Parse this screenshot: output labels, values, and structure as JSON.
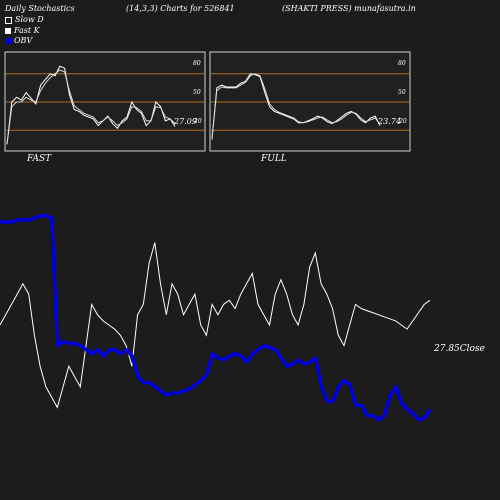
{
  "header": {
    "left": "Daily Stochastics",
    "center": "(14,3,3) Charts for 526841",
    "right": "(SHAKTI PRESS) munafasutra.in"
  },
  "legend": [
    {
      "label": "Slow  D",
      "color": "#ffffff",
      "icon": "square-outline"
    },
    {
      "label": "Fast K",
      "color": "#ffffff",
      "icon": "square-filled"
    },
    {
      "label": "OBV",
      "color": "#0000dd",
      "icon": "square-filled"
    }
  ],
  "colors": {
    "background": "#1c1c1c",
    "panel": "#202020",
    "orange_line": "#b06a1a",
    "obv": "#0000dd",
    "price": "#ffffff"
  },
  "chart_data": [
    {
      "type": "line",
      "title": "FAST",
      "ylim": [
        0,
        100
      ],
      "ref_lines": [
        20,
        50,
        80
      ],
      "y_tick_labels": [
        "80",
        "50",
        "20"
      ],
      "last_value_label": "27.09",
      "series": [
        {
          "values": [
            5,
            50,
            55,
            52,
            60,
            54,
            48,
            68,
            74,
            80,
            78,
            88,
            86,
            58,
            42,
            40,
            36,
            34,
            32,
            25,
            30,
            35,
            27,
            22,
            30,
            34,
            50,
            42,
            38,
            25,
            30,
            50,
            45,
            30,
            32,
            24
          ]
        },
        {
          "values": [
            5,
            45,
            50,
            50,
            55,
            52,
            50,
            62,
            70,
            76,
            80,
            84,
            82,
            62,
            46,
            42,
            38,
            36,
            34,
            28,
            30,
            34,
            30,
            25,
            28,
            32,
            45,
            44,
            40,
            30,
            30,
            45,
            44,
            34,
            32,
            27
          ]
        }
      ]
    },
    {
      "type": "line",
      "title": "FULL",
      "ylim": [
        0,
        100
      ],
      "ref_lines": [
        20,
        50,
        80
      ],
      "y_tick_labels": [
        "80",
        "50",
        "20"
      ],
      "last_value_label": "23.74",
      "series": [
        {
          "values": [
            10,
            65,
            68,
            66,
            66,
            66,
            70,
            72,
            80,
            79,
            77,
            60,
            45,
            40,
            38,
            36,
            34,
            32,
            28,
            28,
            30,
            32,
            35,
            33,
            29,
            27,
            30,
            34,
            38,
            40,
            37,
            31,
            28,
            33,
            35,
            25
          ]
        },
        {
          "values": [
            12,
            62,
            66,
            65,
            65,
            65,
            68,
            71,
            78,
            80,
            78,
            64,
            48,
            42,
            39,
            37,
            35,
            33,
            29,
            28,
            29,
            31,
            33,
            34,
            31,
            28,
            29,
            32,
            36,
            39,
            38,
            33,
            29,
            31,
            33,
            26
          ]
        }
      ]
    },
    {
      "type": "line",
      "series": [
        {
          "name": "OBV",
          "values": [
            100,
            100,
            100,
            101,
            101,
            101,
            102,
            103,
            103,
            102,
            40,
            42,
            41,
            41,
            40,
            38,
            36,
            38,
            35,
            38,
            38,
            36,
            38,
            35,
            25,
            22,
            22,
            20,
            18,
            16,
            17,
            17,
            18,
            19,
            21,
            23,
            26,
            36,
            34,
            33,
            35,
            36,
            35,
            32,
            36,
            38,
            40,
            39,
            38,
            34,
            30,
            31,
            33,
            31,
            32,
            34,
            20,
            13,
            13,
            20,
            23,
            21,
            11,
            11,
            6,
            6,
            4,
            6,
            16,
            20,
            12,
            9,
            7,
            4,
            5,
            9
          ]
        },
        {
          "name": "Price",
          "values": [
            50,
            55,
            60,
            65,
            70,
            65,
            45,
            30,
            20,
            15,
            10,
            20,
            30,
            25,
            20,
            40,
            60,
            55,
            52,
            50,
            48,
            45,
            40,
            30,
            55,
            60,
            80,
            90,
            70,
            55,
            70,
            65,
            55,
            60,
            65,
            50,
            45,
            60,
            55,
            60,
            62,
            58,
            65,
            70,
            75,
            60,
            55,
            50,
            65,
            72,
            65,
            55,
            50,
            60,
            78,
            85,
            70,
            65,
            58,
            45,
            40,
            50,
            60,
            58,
            57,
            56,
            55,
            54,
            53,
            52,
            50,
            48,
            52,
            56,
            60,
            62
          ]
        }
      ],
      "last_value_label": "27.85",
      "price_label": "Close"
    }
  ]
}
